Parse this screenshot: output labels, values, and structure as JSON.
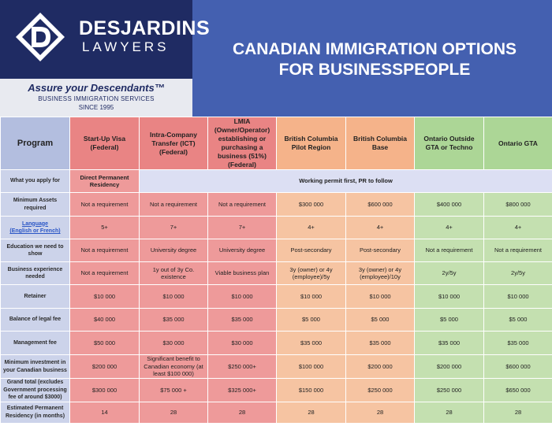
{
  "brand": {
    "name": "DESJARDINS",
    "sub": "LAWYERS",
    "slogan": "Assure your Descendants™",
    "service": "BUSINESS IMMIGRATION SERVICES",
    "since": "SINCE 1995"
  },
  "title_line1": "CANADIAN IMMIGRATION OPTIONS",
  "title_line2": "FOR BUSINESSPEOPLE",
  "colors": {
    "program": "#ccd3ea",
    "federal": "#ee9a9a",
    "british_columbia": "#f6c4a2",
    "ontario": "#c4e0b0",
    "header_bg": "#4460b0",
    "logo_bg": "#1f2b63"
  },
  "table": {
    "program_header": "Program",
    "columns": [
      "Start-Up Visa (Federal)",
      "Intra-Company Transfer (ICT) (Federal)",
      "LMIA (Owner/Operator) establishing or purchasing a business (51%) (Federal)",
      "British Columbia Pilot Region",
      "British Columbia Base",
      "Ontario Outside GTA or Techno",
      "Ontario GTA"
    ],
    "apply_for": {
      "label": "What you apply for",
      "direct": "Direct Permanent Residency",
      "work_permit": "Working permit first, PR to follow"
    },
    "language_label_1": "Language",
    "language_label_2": "(English or French)",
    "rows": [
      {
        "label": "Minimum Assets required",
        "values": [
          "Not a requirement",
          "Not a requirement",
          "Not a requirement",
          "$300 000",
          "$600 000",
          "$400 000",
          "$800 000"
        ]
      },
      {
        "label": "Language (English or French)",
        "values": [
          "5+",
          "7+",
          "7+",
          "4+",
          "4+",
          "4+",
          "4+"
        ]
      },
      {
        "label": "Education we need to show",
        "values": [
          "Not a requirement",
          "University degree",
          "University degree",
          "Post-secondary",
          "Post-secondary",
          "Not a requirement",
          "Not a requirement"
        ]
      },
      {
        "label": "Business experience needed",
        "values": [
          "Not a requirement",
          "1y out of 3y Co. existence",
          "Viable business plan",
          "3y (owner) or 4y (employee)/5y",
          "3y (owner) or 4y (employee)/10y",
          "2y/5y",
          "2y/5y"
        ]
      },
      {
        "label": "Retainer",
        "values": [
          "$10 000",
          "$10 000",
          "$10 000",
          "$10 000",
          "$10 000",
          "$10 000",
          "$10 000"
        ]
      },
      {
        "label": "Balance of legal fee",
        "values": [
          "$40 000",
          "$35 000",
          "$35 000",
          "$5 000",
          "$5 000",
          "$5 000",
          "$5 000"
        ]
      },
      {
        "label": "Management fee",
        "values": [
          "$50 000",
          "$30 000",
          "$30 000",
          "$35 000",
          "$35 000",
          "$35 000",
          "$35 000"
        ]
      },
      {
        "label": "Minimum investment in your Canadian business",
        "values": [
          "$200 000",
          "Significant benefit to Canadian economy (at least $100 000)",
          "$250 000+",
          "$100 000",
          "$200 000",
          "$200 000",
          "$600 000"
        ]
      },
      {
        "label": "Grand total (excludes Government processing fee of around $3000)",
        "values": [
          "$300 000",
          "$75 000 +",
          "$325 000+",
          "$150 000",
          "$250 000",
          "$250 000",
          "$650 000"
        ]
      },
      {
        "label": "Estimated Permanent Residency (in months)",
        "values": [
          "14",
          "28",
          "28",
          "28",
          "28",
          "28",
          "28"
        ]
      }
    ]
  }
}
